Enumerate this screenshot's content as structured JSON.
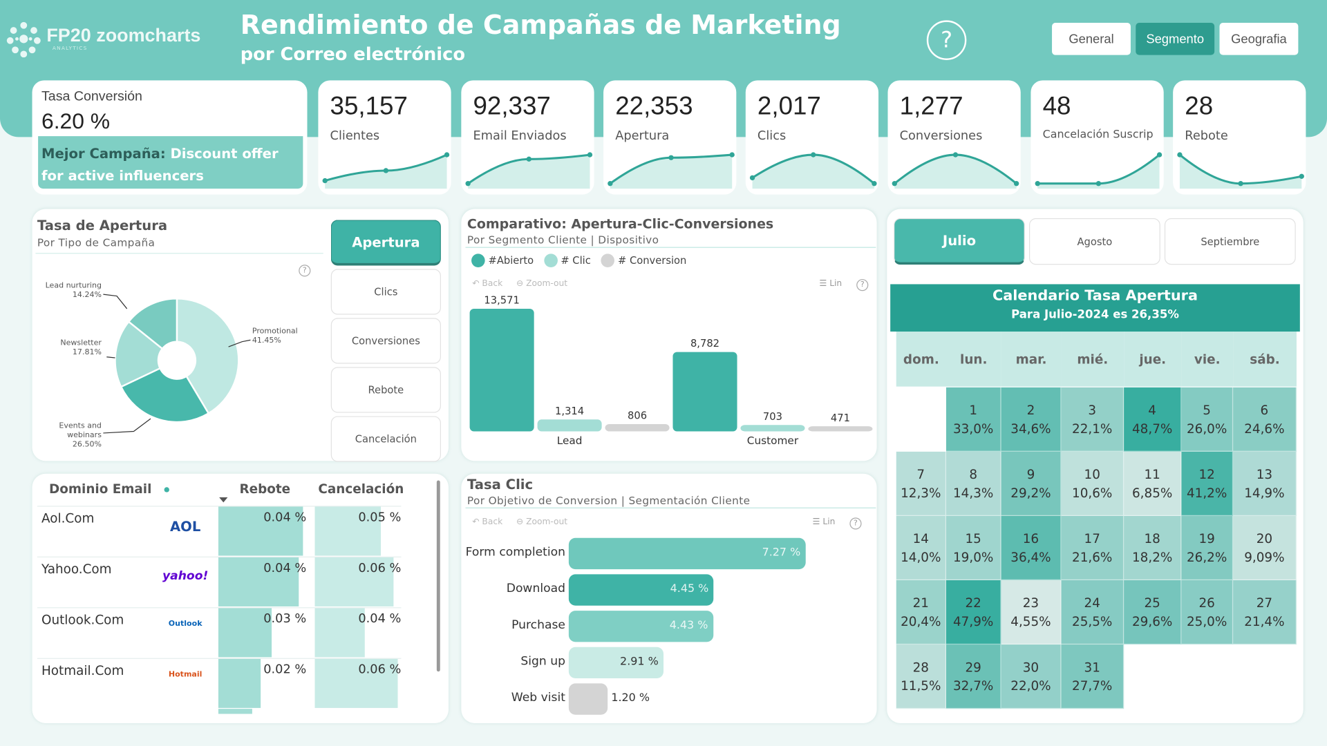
{
  "header": {
    "logo": "FP20 zoomcharts",
    "logo_sub": "ANALYTICS",
    "title": "Rendimiento de Campañas de Marketing",
    "subtitle": "por Correo electrónico",
    "help_icon": "question-circle-icon",
    "nav": [
      {
        "label": "General",
        "active": false
      },
      {
        "label": "Segmento",
        "active": true
      },
      {
        "label": "Geografia",
        "active": false
      }
    ]
  },
  "conversion": {
    "label": "Tasa Conversión",
    "value": "6.20 %",
    "best_label": "Mejor Campaña:",
    "best_value": "Discount offer for active influencers"
  },
  "kpis": [
    {
      "value": "35,157",
      "label": "Clientes",
      "trend": [
        0.1,
        0.45,
        1
      ]
    },
    {
      "value": "92,337",
      "label": "Email Enviados",
      "trend": [
        0,
        0.85,
        1
      ]
    },
    {
      "value": "22,353",
      "label": "Apertura",
      "trend": [
        0,
        0.9,
        1
      ]
    },
    {
      "value": "2,017",
      "label": "Clics",
      "trend": [
        0.2,
        1,
        0
      ]
    },
    {
      "value": "1,277",
      "label": "Conversiones",
      "trend": [
        0,
        1,
        0
      ]
    },
    {
      "value": "48",
      "label": "Cancelación Suscrip",
      "trend": [
        0,
        0,
        1
      ]
    },
    {
      "value": "28",
      "label": "Rebote",
      "trend": [
        1,
        0,
        0.25
      ]
    }
  ],
  "colors": {
    "accent": "#3fb3a6",
    "header": "#72c9bf",
    "dark": "#2e9c8f",
    "clic": "#a3ddd5",
    "conversion": "#d4d4d4"
  },
  "donut_panel": {
    "title": "Tasa de Apertura",
    "subtitle": "Por Tipo de Campaña",
    "buttons": [
      {
        "label": "Apertura",
        "active": true
      },
      {
        "label": "Clics",
        "active": false
      },
      {
        "label": "Conversiones",
        "active": false
      },
      {
        "label": "Rebote",
        "active": false
      },
      {
        "label": "Cancelación",
        "active": false
      }
    ]
  },
  "chart_data": [
    {
      "type": "pie",
      "title": "Tasa de Apertura",
      "subtitle": "Por Tipo de Campaña",
      "categories": [
        "Promotional",
        "Events and webinars",
        "Newsletter",
        "Lead nurturing"
      ],
      "values": [
        41.45,
        26.5,
        17.81,
        14.24
      ],
      "labels": [
        "41.45%",
        "26.50%",
        "17.81%",
        "14.24%"
      ]
    },
    {
      "type": "bar",
      "title": "Comparativo: Apertura-Clic-Conversiones",
      "subtitle": "Por Segmento Cliente | Dispositivo",
      "categories": [
        "Lead",
        "Customer"
      ],
      "series": [
        {
          "name": "#Abierto",
          "values": [
            13571,
            8782
          ],
          "labels": [
            "13,571",
            "8,782"
          ]
        },
        {
          "name": "# Clic",
          "values": [
            1314,
            703
          ],
          "labels": [
            "1,314",
            "703"
          ]
        },
        {
          "name": "# Conversion",
          "values": [
            806,
            471
          ],
          "labels": [
            "806",
            "471"
          ]
        }
      ],
      "legend": "top-left"
    },
    {
      "type": "bar",
      "orientation": "horizontal",
      "title": "Tasa Clic",
      "subtitle": "Por Objetivo de Conversion | Segmentación Cliente",
      "categories": [
        "Form completion",
        "Download",
        "Purchase",
        "Sign up",
        "Web visit"
      ],
      "values": [
        7.27,
        4.45,
        4.43,
        2.91,
        1.2
      ],
      "labels": [
        "7.27 %",
        "4.45 %",
        "4.43 %",
        "2.91 %",
        "1.20 %"
      ]
    }
  ],
  "chart_tools": {
    "back": "Back",
    "zoom_out": "Zoom-out",
    "lin": "Lin"
  },
  "table": {
    "headers": [
      "Dominio Email",
      "Rebote",
      "Cancelación"
    ],
    "rows": [
      {
        "domain": "Aol.Com",
        "logo": "AOL",
        "rebote": "0.04 %",
        "cancel": "0.05 %",
        "rv": 0.04,
        "cv": 0.05
      },
      {
        "domain": "Yahoo.Com",
        "logo": "yahoo!",
        "rebote": "0.04 %",
        "cancel": "0.06 %",
        "rv": 0.038,
        "cv": 0.06
      },
      {
        "domain": "Outlook.Com",
        "logo": "Outlook",
        "rebote": "0.03 %",
        "cancel": "0.04 %",
        "rv": 0.025,
        "cv": 0.038
      },
      {
        "domain": "Hotmail.Com",
        "logo": "Hotmail",
        "rebote": "0.02 %",
        "cancel": "0.06 %",
        "rv": 0.02,
        "cv": 0.063
      }
    ]
  },
  "months": [
    {
      "label": "Julio",
      "active": true
    },
    {
      "label": "Agosto",
      "active": false
    },
    {
      "label": "Septiembre",
      "active": false
    }
  ],
  "calendar": {
    "title": "Calendario Tasa Apertura",
    "subtitle": "Para Julio-2024 es 26,35%",
    "weekdays": [
      "dom.",
      "lun.",
      "mar.",
      "mié.",
      "jue.",
      "vie.",
      "sáb."
    ],
    "first_weekday": 1,
    "days": [
      "33,0%",
      "34,6%",
      "22,1%",
      "48,7%",
      "26,0%",
      "24,6%",
      "12,3%",
      "14,3%",
      "29,2%",
      "10,6%",
      "6,85%",
      "41,2%",
      "14,9%",
      "14,0%",
      "19,0%",
      "36,4%",
      "21,6%",
      "18,2%",
      "26,2%",
      "9,09%",
      "20,4%",
      "47,9%",
      "4,55%",
      "25,5%",
      "29,6%",
      "25,0%",
      "21,4%",
      "11,5%",
      "32,7%",
      "22,0%",
      "27,7%"
    ]
  }
}
